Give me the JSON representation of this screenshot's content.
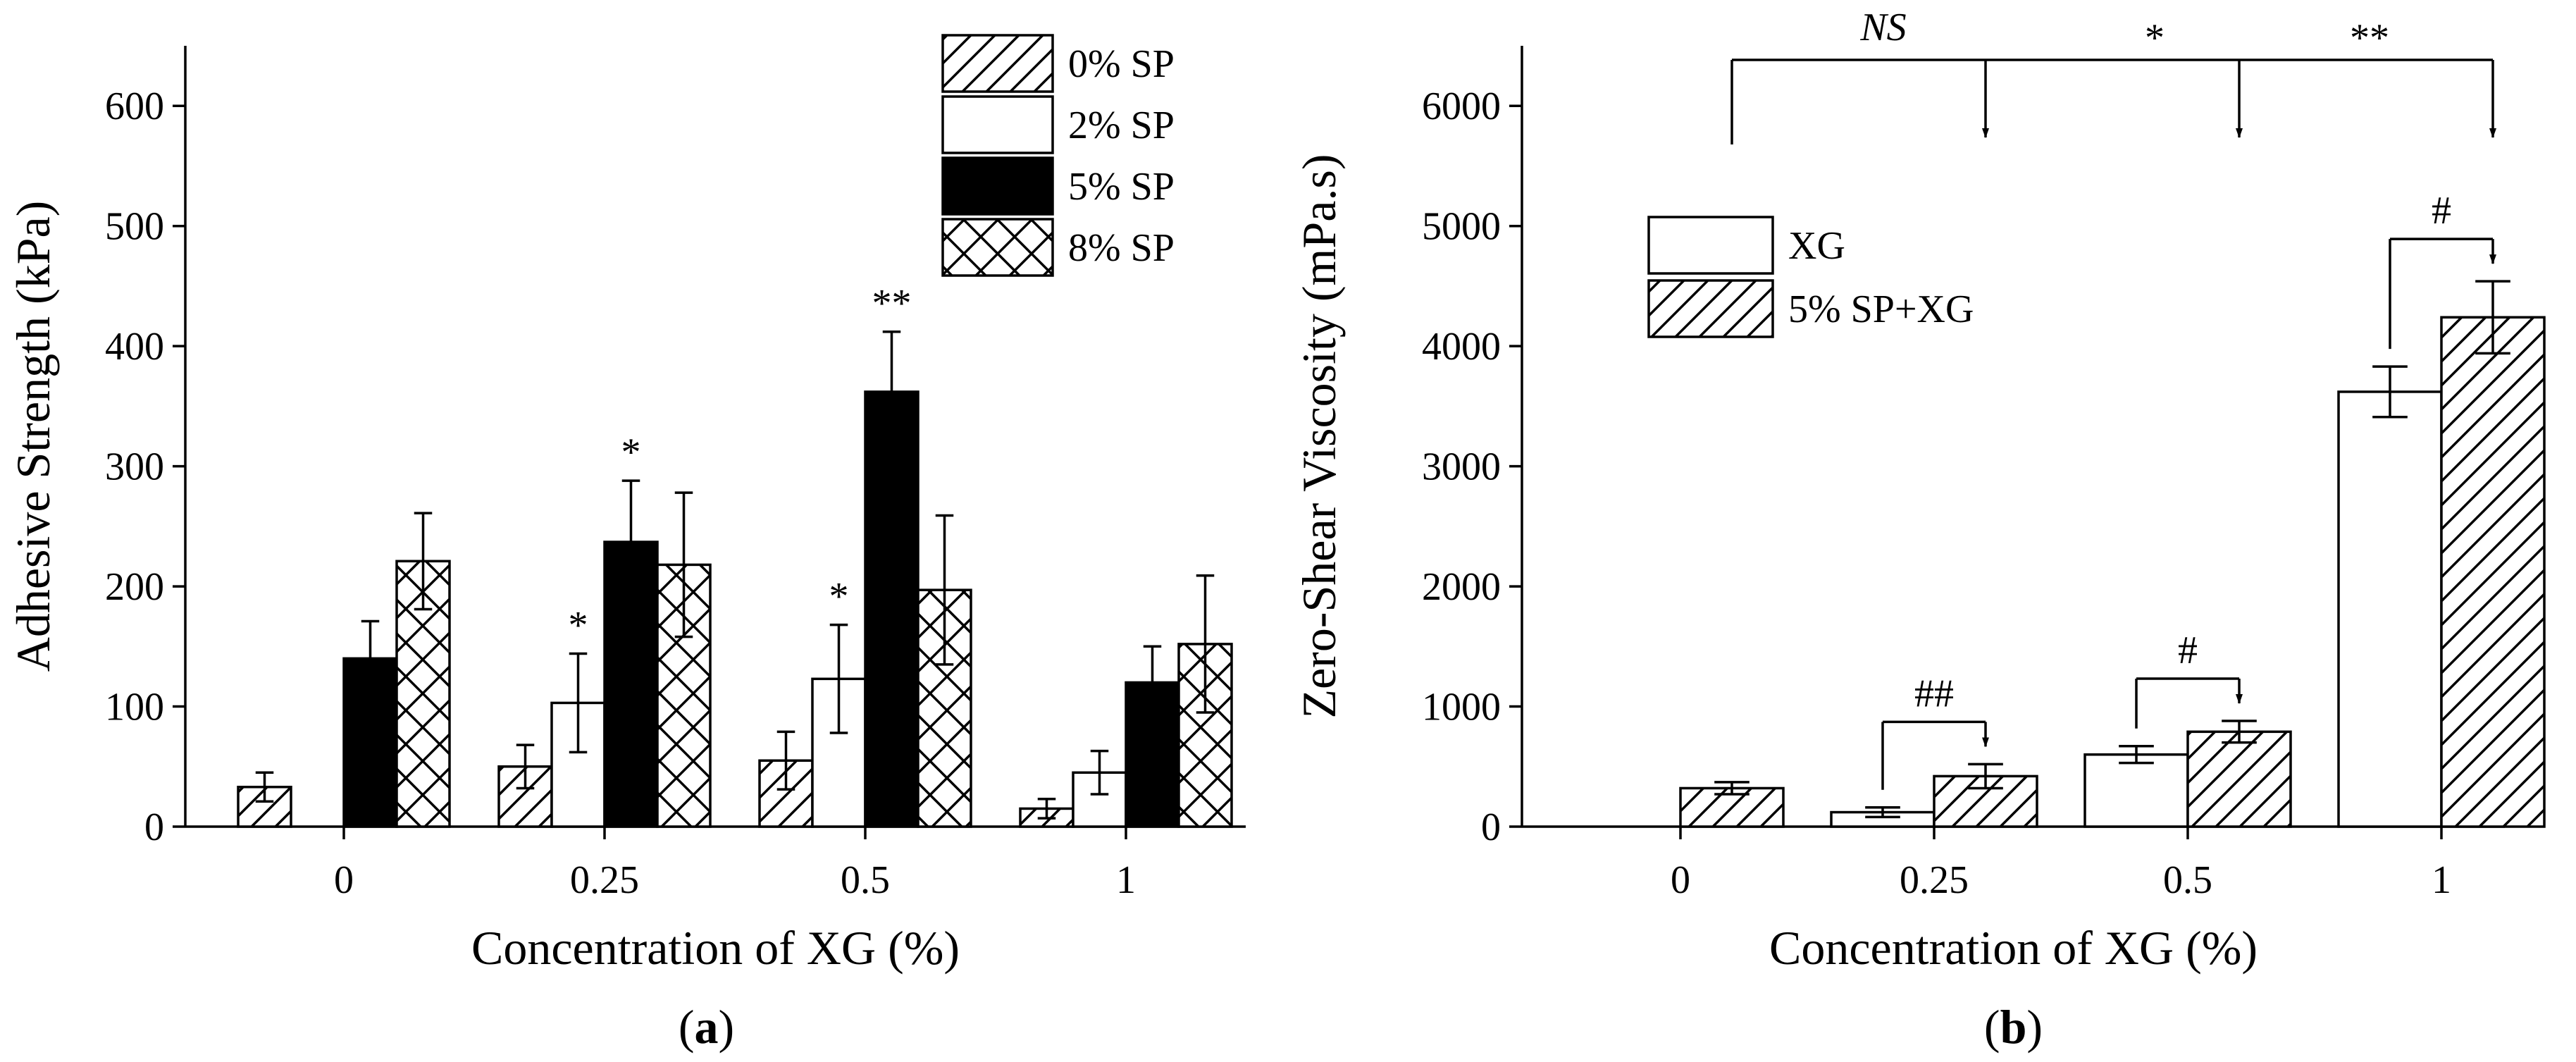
{
  "chart_data": [
    {
      "type": "bar",
      "panel_label": "a",
      "xlabel": "Concentration of XG (%)",
      "ylabel": "Adhesive Strength (kPa)",
      "ylim": [
        0,
        650
      ],
      "yticks": [
        0,
        100,
        200,
        300,
        400,
        500,
        600
      ],
      "categories": [
        "0",
        "0.25",
        "0.5",
        "1"
      ],
      "series": [
        {
          "name": "0% SP",
          "pattern": "diag",
          "values": [
            33,
            50,
            55,
            15
          ],
          "errors": [
            12,
            18,
            24,
            8
          ]
        },
        {
          "name": "2% SP",
          "pattern": "white",
          "values": [
            null,
            103,
            123,
            45
          ],
          "errors": [
            null,
            41,
            45,
            18
          ]
        },
        {
          "name": "5% SP",
          "pattern": "black",
          "values": [
            140,
            237,
            362,
            120
          ],
          "errors": [
            31,
            51,
            50,
            30
          ]
        },
        {
          "name": "8% SP",
          "pattern": "cross",
          "values": [
            221,
            218,
            197,
            152
          ],
          "errors": [
            40,
            60,
            62,
            57
          ]
        }
      ],
      "annotations": [
        {
          "text": "*",
          "category": "0.25",
          "series": "2% SP"
        },
        {
          "text": "*",
          "category": "0.25",
          "series": "5% SP"
        },
        {
          "text": "*",
          "category": "0.5",
          "series": "2% SP"
        },
        {
          "text": "**",
          "category": "0.5",
          "series": "5% SP"
        }
      ],
      "legend_position": "top-right"
    },
    {
      "type": "bar",
      "panel_label": "b",
      "xlabel": "Concentration of XG (%)",
      "ylabel": "Zero-Shear Viscosity (mPa.s)",
      "ylim": [
        0,
        6500
      ],
      "yticks": [
        0,
        1000,
        2000,
        3000,
        4000,
        5000,
        6000
      ],
      "categories": [
        "0",
        "0.25",
        "0.5",
        "1"
      ],
      "series": [
        {
          "name": "XG",
          "pattern": "white",
          "values": [
            null,
            120,
            600,
            3620
          ],
          "errors": [
            null,
            40,
            70,
            210
          ]
        },
        {
          "name": "5% SP+XG",
          "pattern": "diag",
          "values": [
            320,
            420,
            790,
            4240
          ],
          "errors": [
            50,
            100,
            90,
            300
          ]
        }
      ],
      "pair_annotations": [
        {
          "text": "##",
          "category": "0.25"
        },
        {
          "text": "#",
          "category": "0.5"
        },
        {
          "text": "#",
          "category": "1"
        }
      ],
      "top_annotations": {
        "ns": "NS",
        "star1": "*",
        "star2": "**"
      },
      "legend_position": "top-left"
    }
  ]
}
